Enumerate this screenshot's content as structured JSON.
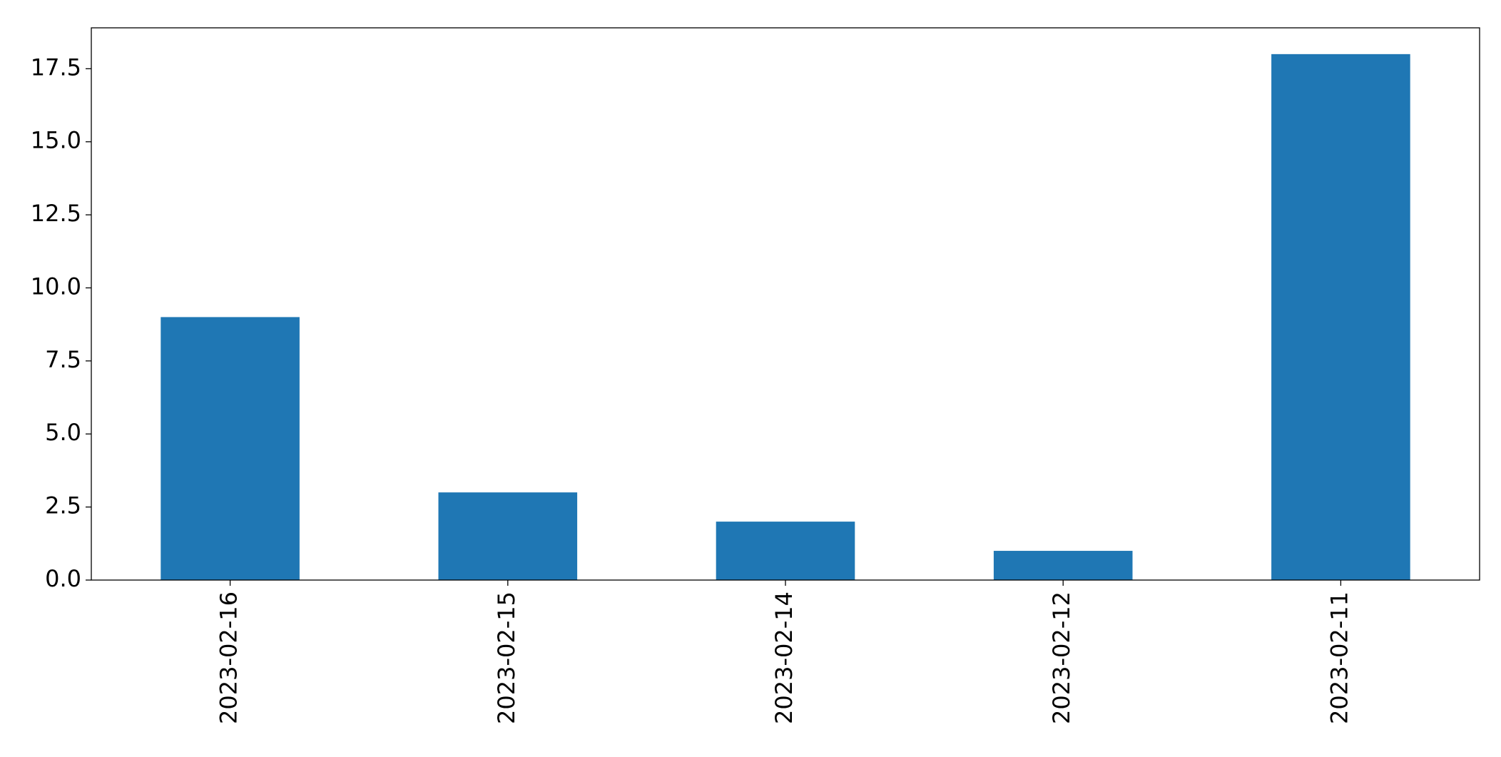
{
  "chart_data": {
    "type": "bar",
    "categories": [
      "2023-02-16",
      "2023-02-15",
      "2023-02-14",
      "2023-02-12",
      "2023-02-11"
    ],
    "values": [
      9,
      3,
      2,
      1,
      18
    ],
    "color": "#1f77b4",
    "ylim": [
      0,
      18.9
    ],
    "yticks": [
      {
        "value": 0,
        "label": "0.0"
      },
      2.5,
      {
        "value": 5,
        "label": "5.0"
      },
      7.5,
      {
        "value": 10,
        "label": "10.0"
      },
      12.5,
      {
        "value": 15,
        "label": "15.0"
      },
      17.5
    ],
    "grid": false
  }
}
